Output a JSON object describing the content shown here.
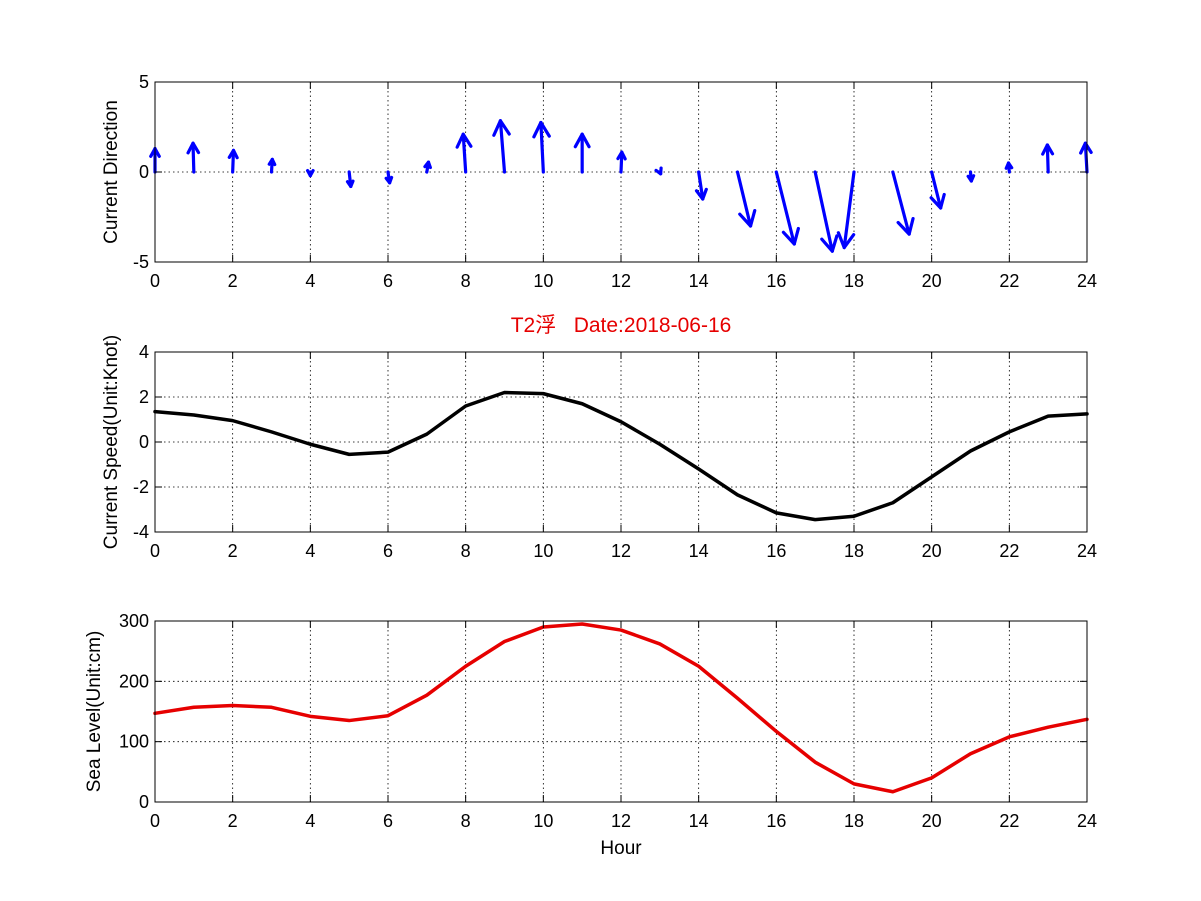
{
  "figure": {
    "title": "T2浮   Date:2018-06-16",
    "title_color": "#e60000"
  },
  "chart_data": [
    {
      "type": "quiver",
      "ylabel": "Current Direction",
      "xlabel": "",
      "xlim": [
        0,
        24
      ],
      "ylim": [
        -5,
        5
      ],
      "xticks": [
        0,
        2,
        4,
        6,
        8,
        10,
        12,
        14,
        16,
        18,
        20,
        22,
        24
      ],
      "yticks": [
        -5,
        0,
        5
      ],
      "grid": true,
      "color": "#0000ff",
      "x": [
        0,
        1,
        2,
        3,
        4,
        5,
        6,
        7,
        8,
        9,
        10,
        11,
        12,
        13,
        14,
        15,
        16,
        17,
        18,
        19,
        20,
        21,
        22,
        23,
        24
      ],
      "u": [
        0.0,
        -0.05,
        0.05,
        0.05,
        0.0,
        0.1,
        0.1,
        0.1,
        -0.15,
        -0.25,
        -0.15,
        0.0,
        0.05,
        0.05,
        0.25,
        0.8,
        1.1,
        1.05,
        -0.6,
        1.0,
        0.55,
        0.05,
        -0.05,
        -0.05,
        -0.1
      ],
      "v": [
        1.3,
        1.6,
        1.2,
        0.7,
        -0.2,
        -0.8,
        -0.6,
        0.55,
        2.1,
        2.85,
        2.75,
        2.1,
        1.1,
        -0.1,
        -1.5,
        -3.0,
        -4.0,
        -4.4,
        -4.2,
        -3.45,
        -2.0,
        -0.5,
        0.5,
        1.5,
        1.6
      ]
    },
    {
      "type": "line",
      "ylabel": "Current Speed(Unit:Knot)",
      "xlabel": "",
      "xlim": [
        0,
        24
      ],
      "ylim": [
        -4,
        4
      ],
      "xticks": [
        0,
        2,
        4,
        6,
        8,
        10,
        12,
        14,
        16,
        18,
        20,
        22,
        24
      ],
      "yticks": [
        -4,
        -2,
        0,
        2,
        4
      ],
      "grid": true,
      "series": [
        {
          "color": "#000000",
          "x": [
            0,
            1,
            2,
            3,
            4,
            5,
            6,
            7,
            8,
            9,
            10,
            11,
            12,
            13,
            14,
            15,
            16,
            17,
            18,
            19,
            20,
            21,
            22,
            23,
            24
          ],
          "values": [
            1.35,
            1.2,
            0.95,
            0.45,
            -0.1,
            -0.55,
            -0.45,
            0.35,
            1.6,
            2.2,
            2.15,
            1.7,
            0.9,
            -0.1,
            -1.2,
            -2.35,
            -3.15,
            -3.45,
            -3.3,
            -2.7,
            -1.55,
            -0.4,
            0.45,
            1.15,
            1.25
          ]
        }
      ]
    },
    {
      "type": "line",
      "ylabel": "Sea Level(Unit:cm)",
      "xlabel": "Hour",
      "xlim": [
        0,
        24
      ],
      "ylim": [
        0,
        300
      ],
      "xticks": [
        0,
        2,
        4,
        6,
        8,
        10,
        12,
        14,
        16,
        18,
        20,
        22,
        24
      ],
      "yticks": [
        0,
        100,
        200,
        300
      ],
      "grid": true,
      "series": [
        {
          "color": "#e60000",
          "x": [
            0,
            1,
            2,
            3,
            4,
            5,
            6,
            7,
            8,
            9,
            10,
            11,
            12,
            13,
            14,
            15,
            16,
            17,
            18,
            19,
            20,
            21,
            22,
            23,
            24
          ],
          "values": [
            147,
            157,
            160,
            157,
            142,
            135,
            143,
            177,
            225,
            266,
            290,
            295,
            285,
            262,
            225,
            172,
            117,
            66,
            30,
            17,
            40,
            80,
            108,
            124,
            137
          ]
        }
      ]
    }
  ]
}
